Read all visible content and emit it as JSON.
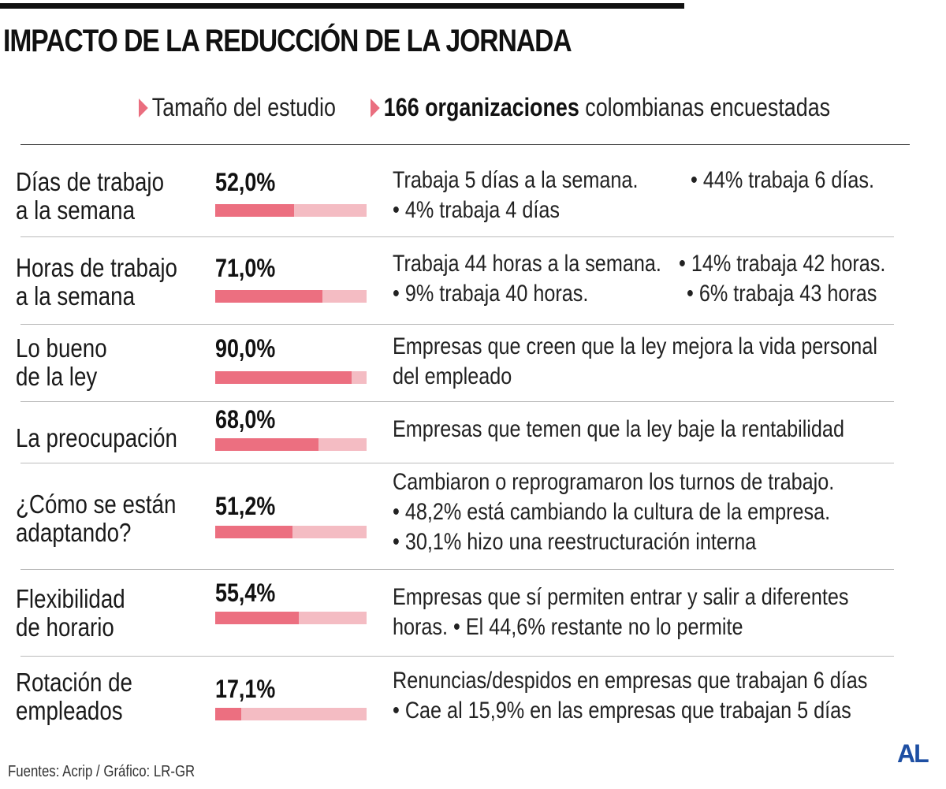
{
  "header": {
    "title": "IMPACTO DE LA REDUCCIÓN DE LA JORNADA",
    "study_label": "Tamaño del estudio",
    "study_bold": "166 organizaciones",
    "study_rest": " colombianas encuestadas"
  },
  "chart_data": {
    "type": "bar",
    "ylim": [
      0,
      100
    ],
    "categories": [
      "Días de trabajo a la semana",
      "Horas de trabajo a la semana",
      "Lo bueno de la ley",
      "La preocupación",
      "¿Cómo se están adaptando?",
      "Flexibilidad de horario",
      "Rotación de empleados"
    ],
    "values": [
      52.0,
      71.0,
      90.0,
      68.0,
      51.2,
      55.4,
      17.1
    ],
    "value_labels": [
      "52,0%",
      "71,0%",
      "90,0%",
      "68,0%",
      "51,2%",
      "55,4%",
      "17,1%"
    ],
    "colors": {
      "fill": "#ec6f80",
      "track": "#f4bcc3",
      "arrow": "#ea6e7f"
    }
  },
  "rows": [
    {
      "label_lines": [
        "Días de trabajo",
        "a la semana"
      ],
      "pct": "52,0%",
      "desc": [
        "Trabaja 5 días a la semana.",
        "• 4% trabaja 4 días"
      ],
      "desc_right": [
        "• 44% trabaja 6 días."
      ]
    },
    {
      "label_lines": [
        "Horas de trabajo",
        "a la semana"
      ],
      "pct": "71,0%",
      "desc": [
        "Trabaja 44 horas a la semana.",
        "• 9% trabaja 40 horas."
      ],
      "desc_right": [
        "• 14% trabaja 42 horas.",
        "• 6% trabaja 43 horas"
      ]
    },
    {
      "label_lines": [
        "Lo bueno",
        "de la ley"
      ],
      "pct": "90,0%",
      "desc": [
        "Empresas que creen que la ley mejora la vida personal",
        "del empleado"
      ],
      "desc_right": []
    },
    {
      "label_lines": [
        "La preocupación"
      ],
      "pct": "68,0%",
      "desc": [
        "Empresas que temen que la ley baje la rentabilidad"
      ],
      "desc_right": []
    },
    {
      "label_lines": [
        "¿Cómo se están",
        "adaptando?"
      ],
      "pct": "51,2%",
      "desc": [
        "Cambiaron o reprogramaron los turnos de trabajo.",
        "• 48,2% está cambiando la cultura de la empresa.",
        "• 30,1% hizo una reestructuración interna"
      ],
      "desc_right": []
    },
    {
      "label_lines": [
        "Flexibilidad",
        "de horario"
      ],
      "pct": "55,4%",
      "desc": [
        "Empresas que sí permiten entrar y salir a diferentes",
        "horas.   • El 44,6% restante no lo permite"
      ],
      "desc_right": []
    },
    {
      "label_lines": [
        "Rotación de",
        "empleados"
      ],
      "pct": "17,1%",
      "desc": [
        "Renuncias/despidos en empresas que trabajan 6 días",
        "• Cae al 15,9% en las empresas que trabajan 5 días"
      ],
      "desc_right": []
    }
  ],
  "footer": {
    "sources": "Fuentes: Acrip / Gráfico: LR-GR",
    "logo": "AL"
  }
}
